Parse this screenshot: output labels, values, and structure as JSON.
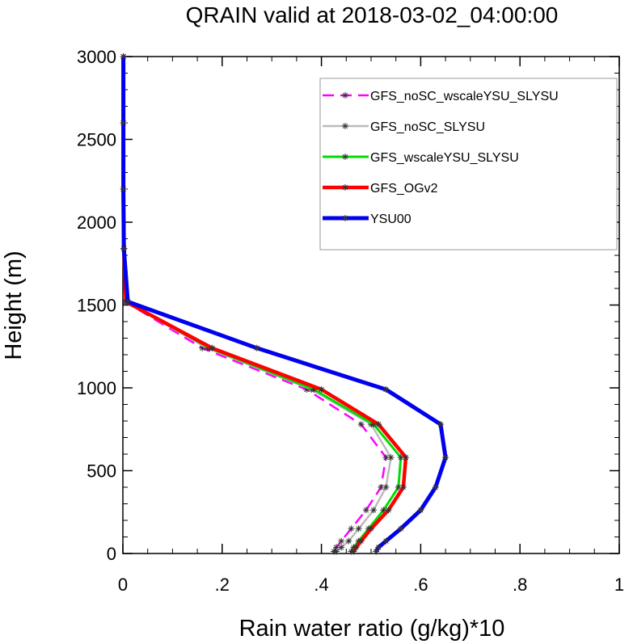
{
  "chart_data": {
    "type": "line",
    "title": "QRAIN valid at 2018-03-02_04:00:00",
    "xlabel": "Rain water ratio (g/kg)*10",
    "ylabel": "Height (m)",
    "xlim": [
      0,
      1
    ],
    "ylim": [
      0,
      3000
    ],
    "x_ticks": [
      0,
      0.2,
      0.4,
      0.6,
      0.8,
      1
    ],
    "x_tick_labels": [
      "0",
      ".2",
      ".4",
      ".6",
      ".8",
      "1"
    ],
    "y_ticks": [
      0,
      500,
      1000,
      1500,
      2000,
      2500,
      3000
    ],
    "y_tick_labels": [
      "0",
      "500",
      "1000",
      "1500",
      "2000",
      "2500",
      "3000"
    ],
    "grid": false,
    "legend_position": "top-right",
    "series": [
      {
        "name": "GFS_noSC_wscaleYSU_SLYSU",
        "color": "#ff00ff",
        "dash": "dashed",
        "heights": [
          12,
          37,
          75,
          150,
          262,
          400,
          580,
          780,
          990,
          1240,
          1520,
          1840,
          2200,
          2600,
          3000
        ],
        "values": [
          0.425,
          0.43,
          0.44,
          0.46,
          0.49,
          0.52,
          0.53,
          0.48,
          0.37,
          0.16,
          0.005,
          0.002,
          0.001,
          0.001,
          0.001
        ]
      },
      {
        "name": "GFS_noSC_SLYSU",
        "color": "#bbbbbb",
        "dash": "solid",
        "heights": [
          12,
          37,
          75,
          150,
          262,
          400,
          580,
          780,
          990,
          1240,
          1520,
          1840,
          2200,
          2600,
          3000
        ],
        "values": [
          0.43,
          0.44,
          0.455,
          0.475,
          0.505,
          0.53,
          0.54,
          0.5,
          0.38,
          0.17,
          0.006,
          0.002,
          0.001,
          0.001,
          0.001
        ]
      },
      {
        "name": "GFS_wscaleYSU_SLYSU",
        "color": "#00dd00",
        "dash": "solid",
        "heights": [
          12,
          37,
          75,
          150,
          262,
          400,
          580,
          780,
          990,
          1240,
          1520,
          1840,
          2200,
          2600,
          3000
        ],
        "values": [
          0.46,
          0.465,
          0.475,
          0.495,
          0.525,
          0.555,
          0.56,
          0.505,
          0.385,
          0.175,
          0.006,
          0.002,
          0.001,
          0.001,
          0.001
        ]
      },
      {
        "name": "GFS_OGv2",
        "color": "#ff0000",
        "dash": "solid",
        "heights": [
          12,
          37,
          75,
          150,
          262,
          400,
          580,
          780,
          990,
          1240,
          1520,
          1840,
          2200,
          2600,
          3000
        ],
        "values": [
          0.465,
          0.47,
          0.48,
          0.5,
          0.535,
          0.565,
          0.57,
          0.515,
          0.4,
          0.18,
          0.006,
          0.002,
          0.001,
          0.001,
          0.001
        ]
      },
      {
        "name": "YSU00",
        "color": "#0000ee",
        "dash": "solid",
        "heights": [
          12,
          37,
          75,
          150,
          262,
          400,
          580,
          780,
          990,
          1240,
          1520,
          1840,
          2200,
          2600,
          3000
        ],
        "values": [
          0.51,
          0.515,
          0.53,
          0.56,
          0.6,
          0.63,
          0.65,
          0.64,
          0.53,
          0.27,
          0.01,
          0.002,
          0.001,
          0.001,
          0.001
        ]
      }
    ]
  }
}
